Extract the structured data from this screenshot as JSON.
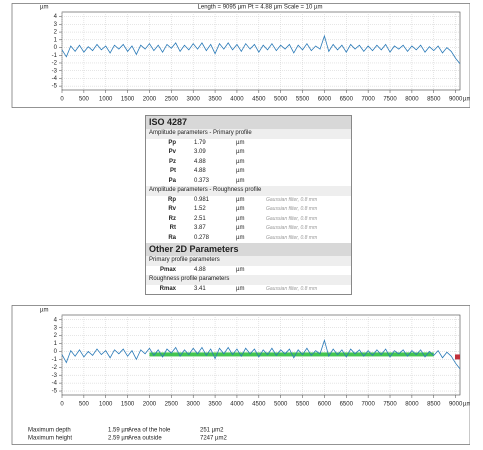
{
  "chart_data": [
    {
      "type": "line",
      "title": "Length = 9095 µm  Pt = 4.88 µm  Scale = 10 µm",
      "y_label": "µm",
      "x_label": "µm",
      "color": "#2a7ab8",
      "grid": true,
      "xlim": [
        0,
        9100
      ],
      "ylim": [
        -5.5,
        4.6
      ],
      "xticks": [
        0,
        500,
        1000,
        1500,
        2000,
        2500,
        3000,
        3500,
        4000,
        4500,
        5000,
        5500,
        6000,
        6500,
        7000,
        7500,
        8000,
        8500,
        9000
      ],
      "yticks": [
        4,
        3,
        2,
        1,
        0,
        -1,
        -2,
        -3,
        -4,
        -5
      ],
      "x": [
        0,
        100,
        200,
        300,
        400,
        500,
        600,
        700,
        800,
        900,
        1000,
        1100,
        1200,
        1300,
        1400,
        1500,
        1600,
        1700,
        1800,
        1900,
        2000,
        2100,
        2200,
        2300,
        2400,
        2500,
        2600,
        2700,
        2800,
        2900,
        3000,
        3100,
        3200,
        3300,
        3400,
        3500,
        3600,
        3700,
        3800,
        3900,
        4000,
        4100,
        4200,
        4300,
        4400,
        4500,
        4600,
        4700,
        4800,
        4900,
        5000,
        5100,
        5200,
        5300,
        5400,
        5500,
        5600,
        5700,
        5800,
        5900,
        6000,
        6100,
        6200,
        6300,
        6400,
        6500,
        6600,
        6700,
        6800,
        6900,
        7000,
        7100,
        7200,
        7300,
        7400,
        7500,
        7600,
        7700,
        7800,
        7900,
        8000,
        8100,
        8200,
        8300,
        8400,
        8500,
        8600,
        8700,
        8800,
        8900,
        9000,
        9100
      ],
      "values": [
        -0.3,
        -1.2,
        0.2,
        -0.5,
        0.3,
        -0.6,
        0.1,
        -0.4,
        0.4,
        -0.3,
        0.2,
        -0.7,
        0.3,
        -0.2,
        0.4,
        -0.5,
        0.2,
        -0.9,
        0.3,
        -0.2,
        0.5,
        -0.4,
        0.3,
        -0.6,
        0.4,
        -0.1,
        0.6,
        -0.5,
        0.3,
        -0.3,
        0.5,
        -0.2,
        0.6,
        -0.4,
        0.4,
        -0.8,
        0.5,
        -0.2,
        0.6,
        -0.3,
        0.4,
        -0.5,
        0.5,
        -0.2,
        0.4,
        -0.6,
        0.3,
        -0.3,
        0.5,
        -0.4,
        0.3,
        -0.2,
        0.4,
        -0.7,
        0.3,
        -0.3,
        0.5,
        -0.4,
        0.2,
        -0.2,
        1.5,
        -0.5,
        0.4,
        -0.3,
        0.3,
        -0.6,
        0.4,
        -0.2,
        0.3,
        -0.5,
        0.2,
        -0.4,
        0.3,
        -0.3,
        0.4,
        -0.6,
        0.2,
        -0.2,
        0.3,
        -0.5,
        0.2,
        -0.3,
        0.3,
        -0.6,
        0.1,
        -0.4,
        0.2,
        -0.7,
        0.0,
        -0.5,
        -1.4,
        -2.1
      ]
    },
    {
      "type": "line",
      "y_label": "µm",
      "x_label": "µm",
      "color": "#2a7ab8",
      "grid": true,
      "xlim": [
        0,
        9100
      ],
      "ylim": [
        -5.5,
        4.6
      ],
      "xticks": [
        0,
        500,
        1000,
        1500,
        2000,
        2500,
        3000,
        3500,
        4000,
        4500,
        5000,
        5500,
        6000,
        6500,
        7000,
        7500,
        8000,
        8500,
        9000
      ],
      "yticks": [
        4,
        3,
        2,
        1,
        0,
        -1,
        -2,
        -3,
        -4,
        -5
      ],
      "x": [
        0,
        100,
        200,
        300,
        400,
        500,
        600,
        700,
        800,
        900,
        1000,
        1100,
        1200,
        1300,
        1400,
        1500,
        1600,
        1700,
        1800,
        1900,
        2000,
        2100,
        2200,
        2300,
        2400,
        2500,
        2600,
        2700,
        2800,
        2900,
        3000,
        3100,
        3200,
        3300,
        3400,
        3500,
        3600,
        3700,
        3800,
        3900,
        4000,
        4100,
        4200,
        4300,
        4400,
        4500,
        4600,
        4700,
        4800,
        4900,
        5000,
        5100,
        5200,
        5300,
        5400,
        5500,
        5600,
        5700,
        5800,
        5900,
        6000,
        6100,
        6200,
        6300,
        6400,
        6500,
        6600,
        6700,
        6800,
        6900,
        7000,
        7100,
        7200,
        7300,
        7400,
        7500,
        7600,
        7700,
        7800,
        7900,
        8000,
        8100,
        8200,
        8300,
        8400,
        8500,
        8600,
        8700,
        8800,
        8900,
        9000,
        9100
      ],
      "values": [
        -0.4,
        -1.4,
        0.1,
        -0.6,
        0.2,
        -0.7,
        0.0,
        -0.5,
        0.3,
        -0.4,
        0.1,
        -0.8,
        0.2,
        -0.3,
        0.3,
        -0.6,
        0.1,
        -1.0,
        0.2,
        -0.3,
        0.4,
        -0.5,
        0.2,
        -0.7,
        0.3,
        -0.2,
        0.5,
        -0.6,
        0.2,
        -0.4,
        0.4,
        -0.3,
        0.5,
        -0.5,
        0.3,
        -0.9,
        0.4,
        -0.3,
        0.5,
        -0.4,
        0.3,
        -0.6,
        0.4,
        -0.3,
        0.3,
        -0.7,
        0.2,
        -0.4,
        0.4,
        -0.5,
        0.2,
        -0.3,
        0.3,
        -0.8,
        0.2,
        -0.4,
        0.4,
        -0.5,
        0.1,
        -0.3,
        1.4,
        -0.6,
        0.3,
        -0.4,
        0.2,
        -0.7,
        0.3,
        -0.3,
        0.2,
        -0.6,
        0.1,
        -0.5,
        0.2,
        -0.4,
        0.3,
        -0.7,
        0.1,
        -0.3,
        0.2,
        -0.6,
        0.1,
        -0.4,
        0.2,
        -0.7,
        0.0,
        -0.5,
        0.1,
        -0.8,
        -0.1,
        -0.6,
        -1.5,
        -2.2
      ]
    }
  ],
  "table": {
    "title": "ISO 4287",
    "groups": [
      {
        "heading": "Amplitude parameters - Primary profile",
        "rows": [
          [
            "Pp",
            "1.79",
            "µm"
          ],
          [
            "Pv",
            "3.09",
            "µm"
          ],
          [
            "Pz",
            "4.88",
            "µm"
          ],
          [
            "Pt",
            "4.88",
            "µm"
          ],
          [
            "Pa",
            "0.373",
            "µm"
          ]
        ]
      },
      {
        "heading": "Amplitude parameters - Roughness profile",
        "rows": [
          [
            "Rp",
            "0.981",
            "µm",
            "Gaussian filter, 0.8 mm"
          ],
          [
            "Rv",
            "1.52",
            "µm",
            "Gaussian filter, 0.8 mm"
          ],
          [
            "Rz",
            "2.51",
            "µm",
            "Gaussian filter, 0.8 mm"
          ],
          [
            "Rt",
            "3.87",
            "µm",
            "Gaussian filter, 0.8 mm"
          ],
          [
            "Ra",
            "0.278",
            "µm",
            "Gaussian filter, 0.8 mm"
          ]
        ]
      }
    ],
    "title2": "Other 2D Parameters",
    "groups2": [
      {
        "heading": "Primary profile parameters",
        "rows": [
          [
            "Pmax",
            "4.88",
            "µm"
          ]
        ]
      },
      {
        "heading": "Roughness profile parameters",
        "rows": [
          [
            "Rmax",
            "3.41",
            "µm",
            "Gaussian filter, 0.8 mm"
          ]
        ]
      }
    ]
  },
  "results": [
    [
      "Maximum depth",
      "1.59 µm",
      "Area of the hole",
      "251 µm2"
    ],
    [
      "Maximum height",
      "2.59 µm",
      "Area outside",
      "7247 µm2"
    ]
  ]
}
